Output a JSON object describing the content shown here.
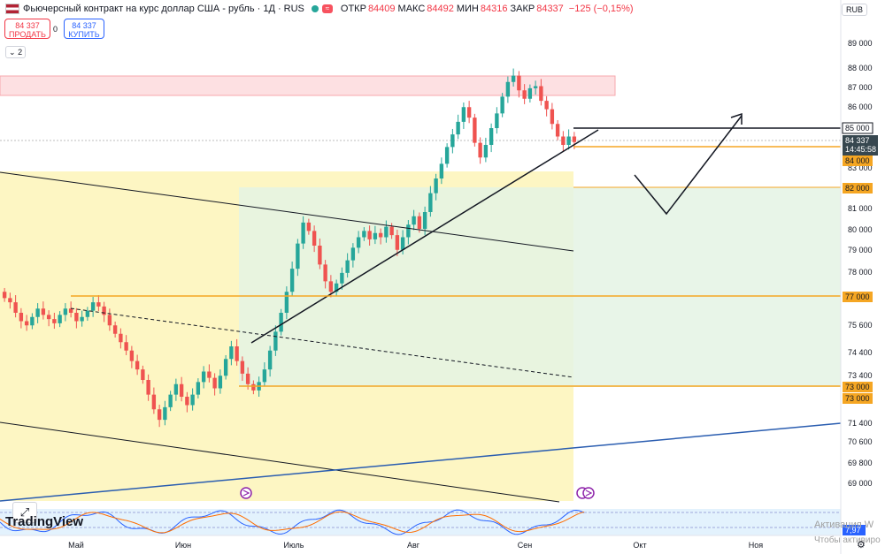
{
  "header": {
    "title": "Фьючерсный контракт на курс доллар США - рубль · 1Д · RUS",
    "open_label": "ОТКР",
    "open": "84409",
    "high_label": "МАКС",
    "high": "84492",
    "low_label": "МИН",
    "low": "84316",
    "close_label": "ЗАКР",
    "close": "84337",
    "change": "−125 (−0,15%)"
  },
  "trade": {
    "sell_price": "84 337",
    "sell_label": "ПРОДАТЬ",
    "spread": "0",
    "buy_price": "84 337",
    "buy_label": "КУПИТЬ"
  },
  "indicators_toggle": "2",
  "currency": "RUB",
  "watermark": "TradingView",
  "activation_line1": "Активация W",
  "activation_line2": "Чтобы активиро",
  "colors": {
    "up": "#26a69a",
    "down": "#ef5350",
    "orange": "#f5a623",
    "blue": "#2962ff",
    "zone_yellow": "#fdf6c3",
    "zone_green": "#e8f5e9",
    "zone_red": "#fde0e2"
  },
  "chart_data": {
    "type": "candlestick",
    "x_ticks": [
      "Май",
      "Июн",
      "Июль",
      "Авг",
      "Сен",
      "Окт",
      "Ноя"
    ],
    "y_ticks": [
      "89 000",
      "88 000",
      "87 000",
      "86 000",
      "85 000",
      "84 000",
      "83 000",
      "82 000",
      "81 000",
      "80 000",
      "79 000",
      "78 000",
      "77 000",
      "75 600",
      "74 400",
      "73 400",
      "73 000",
      "71 400",
      "70 600",
      "69 800",
      "69 000"
    ],
    "highlighted_levels": [
      {
        "label": "85 000",
        "style": "black"
      },
      {
        "label": "84 000",
        "style": "orange"
      },
      {
        "label": "82 000",
        "style": "orange"
      },
      {
        "label": "77 000",
        "style": "orange"
      },
      {
        "label": "73 000",
        "style": "orange"
      },
      {
        "label": "73 000",
        "style": "orange"
      }
    ],
    "last_price": {
      "label": "84 337",
      "countdown": "14:45:58"
    },
    "oscillator": {
      "label": "7,97"
    },
    "closes": [
      76900,
      76700,
      76200,
      75800,
      75600,
      76000,
      76400,
      76100,
      75900,
      75700,
      76100,
      76400,
      76200,
      75800,
      76000,
      76300,
      76700,
      76500,
      76100,
      75600,
      75200,
      74800,
      74400,
      73900,
      73500,
      73000,
      72300,
      71600,
      71100,
      71700,
      72300,
      72800,
      72200,
      71800,
      72300,
      72900,
      73400,
      73100,
      72600,
      73200,
      74000,
      74600,
      73900,
      73300,
      72800,
      72500,
      72900,
      73500,
      74400,
      75300,
      76200,
      77200,
      78300,
      79500,
      80500,
      80100,
      79400,
      78500,
      77700,
      77200,
      77600,
      78100,
      78700,
      79300,
      79800,
      80100,
      79700,
      80000,
      79800,
      80300,
      79900,
      79200,
      79800,
      80400,
      80800,
      80200,
      81000,
      81900,
      82600,
      83300,
      84100,
      84700,
      85300,
      86000,
      85500,
      84300,
      83600,
      84200,
      85000,
      85700,
      86500,
      87200,
      87500,
      86800,
      86400,
      86900,
      87000,
      86300,
      85900,
      85200,
      84600,
      84200,
      84600,
      84337
    ]
  }
}
